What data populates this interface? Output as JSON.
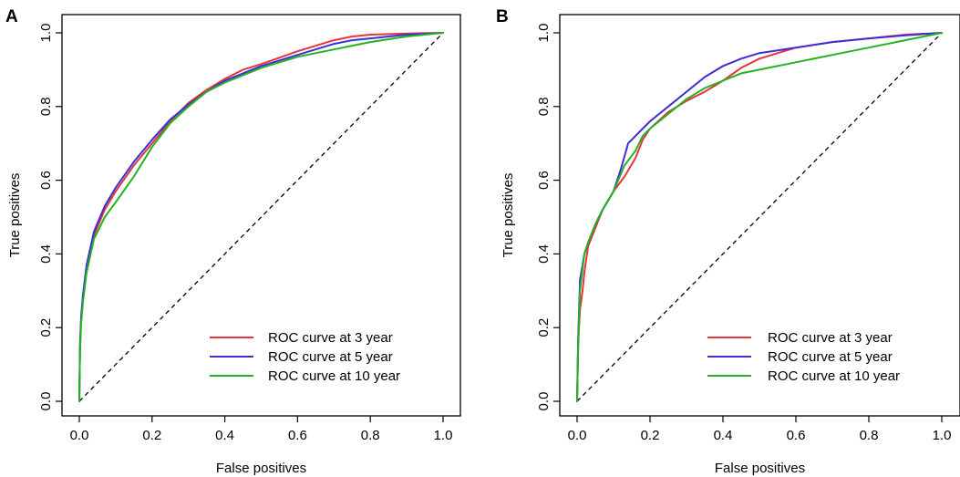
{
  "colors": {
    "red": "#e8333f",
    "blue": "#3b2fd6",
    "green": "#22b321",
    "diag": "#000000"
  },
  "chart_data": [
    {
      "type": "line",
      "panel_label": "A",
      "xlabel": "False positives",
      "ylabel": "True positives",
      "xlim": [
        0,
        1
      ],
      "ylim": [
        0,
        1
      ],
      "x_ticks": [
        "0.0",
        "0.2",
        "0.4",
        "0.6",
        "0.8",
        "1.0"
      ],
      "y_ticks": [
        "0.0",
        "0.2",
        "0.4",
        "0.6",
        "0.8",
        "1.0"
      ],
      "legend_position": "bottom-right",
      "reference_line": "diagonal dashed from (0,0) to (1,1)",
      "series": [
        {
          "name": "ROC curve at 3 year",
          "color": "#e8333f",
          "x": [
            0,
            0.002,
            0.005,
            0.01,
            0.02,
            0.04,
            0.07,
            0.1,
            0.15,
            0.2,
            0.25,
            0.3,
            0.35,
            0.4,
            0.45,
            0.5,
            0.6,
            0.7,
            0.75,
            0.8,
            0.9,
            1.0
          ],
          "y": [
            0,
            0.15,
            0.22,
            0.28,
            0.36,
            0.45,
            0.52,
            0.57,
            0.64,
            0.7,
            0.76,
            0.81,
            0.845,
            0.875,
            0.9,
            0.915,
            0.95,
            0.98,
            0.99,
            0.995,
            0.998,
            1.0
          ]
        },
        {
          "name": "ROC curve at 5 year",
          "color": "#3b2fd6",
          "x": [
            0,
            0.002,
            0.005,
            0.01,
            0.02,
            0.04,
            0.07,
            0.1,
            0.15,
            0.2,
            0.25,
            0.3,
            0.35,
            0.4,
            0.45,
            0.5,
            0.6,
            0.7,
            0.75,
            0.8,
            0.9,
            1.0
          ],
          "y": [
            0,
            0.16,
            0.23,
            0.29,
            0.37,
            0.46,
            0.53,
            0.58,
            0.65,
            0.71,
            0.765,
            0.805,
            0.84,
            0.87,
            0.89,
            0.91,
            0.94,
            0.97,
            0.98,
            0.985,
            0.995,
            1.0
          ]
        },
        {
          "name": "ROC curve at 10 year",
          "color": "#22b321",
          "x": [
            0,
            0.002,
            0.005,
            0.01,
            0.02,
            0.04,
            0.07,
            0.1,
            0.15,
            0.2,
            0.25,
            0.3,
            0.35,
            0.4,
            0.45,
            0.5,
            0.6,
            0.7,
            0.75,
            0.8,
            0.9,
            1.0
          ],
          "y": [
            0,
            0.14,
            0.21,
            0.27,
            0.35,
            0.44,
            0.5,
            0.54,
            0.61,
            0.69,
            0.755,
            0.8,
            0.84,
            0.865,
            0.885,
            0.905,
            0.935,
            0.955,
            0.965,
            0.975,
            0.99,
            1.0
          ]
        }
      ]
    },
    {
      "type": "line",
      "panel_label": "B",
      "xlabel": "False positives",
      "ylabel": "True positives",
      "xlim": [
        0,
        1
      ],
      "ylim": [
        0,
        1
      ],
      "x_ticks": [
        "0.0",
        "0.2",
        "0.4",
        "0.6",
        "0.8",
        "1.0"
      ],
      "y_ticks": [
        "0.0",
        "0.2",
        "0.4",
        "0.6",
        "0.8",
        "1.0"
      ],
      "legend_position": "bottom-right",
      "reference_line": "diagonal dashed from (0,0) to (1,1)",
      "series": [
        {
          "name": "ROC curve at 3 year",
          "color": "#e8333f",
          "x": [
            0,
            0.003,
            0.008,
            0.015,
            0.02,
            0.03,
            0.05,
            0.07,
            0.1,
            0.13,
            0.16,
            0.18,
            0.2,
            0.25,
            0.3,
            0.35,
            0.4,
            0.45,
            0.5,
            0.6,
            0.7,
            0.8,
            0.9,
            1.0
          ],
          "y": [
            0,
            0.16,
            0.25,
            0.3,
            0.35,
            0.42,
            0.47,
            0.52,
            0.57,
            0.61,
            0.66,
            0.71,
            0.74,
            0.785,
            0.815,
            0.84,
            0.87,
            0.905,
            0.93,
            0.96,
            0.975,
            0.985,
            0.995,
            1.0
          ]
        },
        {
          "name": "ROC curve at 5 year",
          "color": "#3b2fd6",
          "x": [
            0,
            0.003,
            0.008,
            0.015,
            0.02,
            0.03,
            0.05,
            0.07,
            0.1,
            0.12,
            0.14,
            0.18,
            0.2,
            0.25,
            0.3,
            0.35,
            0.4,
            0.45,
            0.5,
            0.6,
            0.7,
            0.8,
            0.9,
            1.0
          ],
          "y": [
            0,
            0.17,
            0.33,
            0.37,
            0.4,
            0.43,
            0.48,
            0.52,
            0.57,
            0.63,
            0.7,
            0.74,
            0.76,
            0.8,
            0.84,
            0.88,
            0.91,
            0.93,
            0.945,
            0.96,
            0.975,
            0.985,
            0.993,
            1.0
          ]
        },
        {
          "name": "ROC curve at 10 year",
          "color": "#22b321",
          "x": [
            0,
            0.003,
            0.008,
            0.015,
            0.02,
            0.03,
            0.05,
            0.07,
            0.1,
            0.13,
            0.16,
            0.18,
            0.2,
            0.25,
            0.3,
            0.35,
            0.4,
            0.45,
            0.5,
            0.6,
            0.7,
            0.8,
            0.9,
            1.0
          ],
          "y": [
            0,
            0.15,
            0.3,
            0.36,
            0.4,
            0.43,
            0.48,
            0.52,
            0.57,
            0.64,
            0.68,
            0.72,
            0.74,
            0.78,
            0.82,
            0.85,
            0.87,
            0.89,
            0.9,
            0.92,
            0.94,
            0.96,
            0.98,
            1.0
          ]
        }
      ]
    }
  ]
}
